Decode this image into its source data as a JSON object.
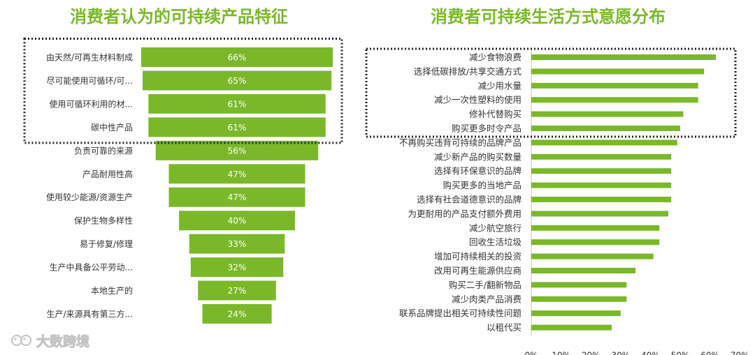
{
  "chart_data": [
    {
      "type": "bar",
      "title": "消费者认为的可持续产品特征",
      "categories": [
        "由天然/可再生材料制成",
        "尽可能使用可循环/可...",
        "使用可循环利用的材...",
        "碳中性产品",
        "负责可靠的来源",
        "产品耐用性高",
        "使用较少能源/资源生产",
        "保护生物多样性",
        "易于修复/修理",
        "生产中具备公平劳动...",
        "本地生产的",
        "生产/来源具有第三方..."
      ],
      "values": [
        66,
        65,
        61,
        61,
        56,
        47,
        47,
        40,
        33,
        32,
        27,
        24
      ],
      "value_labels": [
        "66%",
        "65%",
        "61%",
        "61%",
        "56%",
        "47%",
        "47%",
        "40%",
        "33%",
        "32%",
        "27%",
        "24%"
      ],
      "orientation": "horizontal-centered",
      "highlighted_top": 4,
      "bar_color": "#7ab829"
    },
    {
      "type": "bar",
      "title": "消费者可持续生活方式意愿分布",
      "categories": [
        "减少食物浪费",
        "选择低碳排放/共享交通方式",
        "减少用水量",
        "减少一次性塑料的使用",
        "修补代替购买",
        "购买更多时令产品",
        "不再购买违背可持续的品牌产品",
        "减少新产品的购买数量",
        "选择有环保意识的品牌",
        "购买更多的当地产品",
        "选择有社会道德意识的品牌",
        "为更耐用的产品支付额外费用",
        "减少航空旅行",
        "回收生活垃圾",
        "增加可持续相关的投资",
        "改用可再生能源供应商",
        "购买二手/翻新物品",
        "减少肉类产品消费",
        "联系品牌提出相关可持续性问题",
        "以租代买"
      ],
      "values": [
        62,
        58,
        56,
        56,
        51,
        50,
        49,
        47,
        47,
        47,
        47,
        46,
        43,
        43,
        41,
        35,
        32,
        32,
        30,
        27
      ],
      "orientation": "horizontal",
      "xlim": [
        0,
        70
      ],
      "x_ticks": [
        "0%",
        "10%",
        "20%",
        "30%",
        "40%",
        "50%",
        "60%",
        "70%"
      ],
      "highlighted_top": 6,
      "bar_color": "#7ab829"
    }
  ],
  "watermark": "大数跨境"
}
